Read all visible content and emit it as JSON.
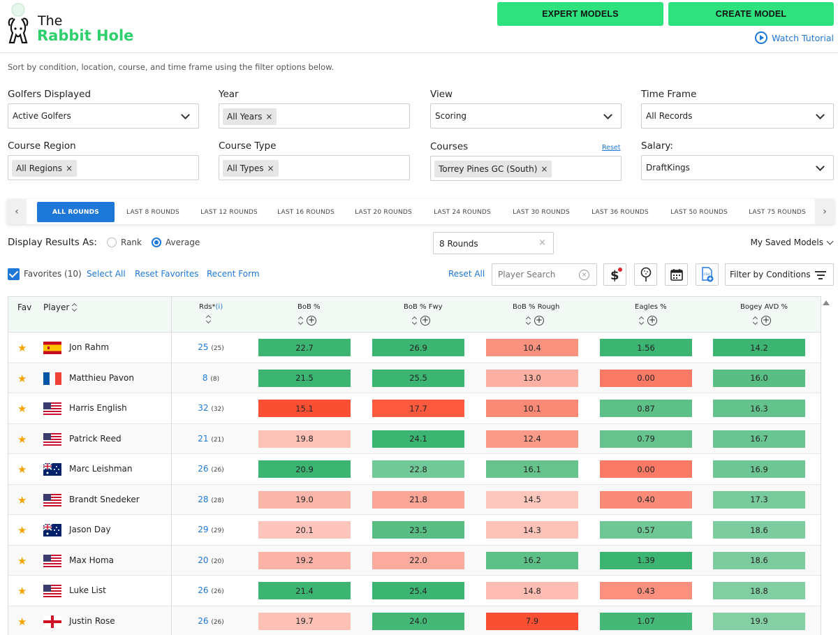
{
  "header": {
    "logo_the": "The",
    "logo_name": "Rabbit Hole",
    "expert_models": "EXPERT MODELS",
    "create_model": "CREATE MODEL",
    "watch_tutorial": "Watch Tutorial"
  },
  "subtitle": "Sort by condition, location, course, and time frame using the filter options below.",
  "filters": {
    "golfers_label": "Golfers Displayed",
    "golfers_value": "Active Golfers",
    "year_label": "Year",
    "year_chip": "All Years",
    "view_label": "View",
    "view_value": "Scoring",
    "timeframe_label": "Time Frame",
    "timeframe_value": "All Records",
    "region_label": "Course Region",
    "region_chip": "All Regions",
    "type_label": "Course Type",
    "type_chip": "All Types",
    "courses_label": "Courses",
    "courses_reset": "Reset",
    "courses_chip": "Torrey Pines GC (South)",
    "salary_label": "Salary:",
    "salary_value": "DraftKings"
  },
  "round_tabs": [
    "ALL ROUNDS",
    "LAST 8 ROUNDS",
    "LAST 12 ROUNDS",
    "LAST 16 ROUNDS",
    "LAST 20 ROUNDS",
    "LAST 24 ROUNDS",
    "LAST 30 ROUNDS",
    "LAST 36 ROUNDS",
    "LAST 50 ROUNDS",
    "LAST 75 ROUNDS"
  ],
  "display": {
    "label": "Display Results As:",
    "rank": "Rank",
    "average": "Average",
    "rounds_value": "8 Rounds",
    "saved_models": "My Saved Models"
  },
  "toolbar": {
    "favorites": "Favorites (10)",
    "select_all": "Select All",
    "reset_favorites": "Reset Favorites",
    "recent_form": "Recent Form",
    "reset_all": "Reset All",
    "search_placeholder": "Player Search",
    "filter_conditions": "Filter by Conditions"
  },
  "table": {
    "headers": {
      "fav": "Fav",
      "player": "Player",
      "rds": "Rds*",
      "rds_info": "(i)",
      "c1": "BoB %",
      "c2": "BoB % Fwy",
      "c3": "BoB % Rough",
      "c4": "Eagles %",
      "c5": "Bogey AVD %"
    },
    "rows": [
      {
        "name": "Jon Rahm",
        "flag": "es",
        "rds": "25",
        "rds_total": "(25)",
        "v": [
          "22.7",
          "26.9",
          "10.4",
          "1.56",
          "14.2"
        ]
      },
      {
        "name": "Matthieu Pavon",
        "flag": "fr",
        "rds": "8",
        "rds_total": "(8)",
        "v": [
          "21.5",
          "25.5",
          "13.0",
          "0.00",
          "16.0"
        ]
      },
      {
        "name": "Harris English",
        "flag": "us",
        "rds": "32",
        "rds_total": "(32)",
        "v": [
          "15.1",
          "17.7",
          "10.1",
          "0.87",
          "16.3"
        ]
      },
      {
        "name": "Patrick Reed",
        "flag": "us",
        "rds": "21",
        "rds_total": "(21)",
        "v": [
          "19.8",
          "24.1",
          "12.4",
          "0.79",
          "16.7"
        ]
      },
      {
        "name": "Marc Leishman",
        "flag": "au",
        "rds": "26",
        "rds_total": "(26)",
        "v": [
          "20.9",
          "22.8",
          "16.1",
          "0.00",
          "16.9"
        ]
      },
      {
        "name": "Brandt Snedeker",
        "flag": "us",
        "rds": "28",
        "rds_total": "(28)",
        "v": [
          "19.0",
          "21.8",
          "14.5",
          "0.40",
          "17.3"
        ]
      },
      {
        "name": "Jason Day",
        "flag": "au",
        "rds": "29",
        "rds_total": "(29)",
        "v": [
          "20.1",
          "23.5",
          "14.3",
          "0.57",
          "18.6"
        ]
      },
      {
        "name": "Max Homa",
        "flag": "us",
        "rds": "20",
        "rds_total": "(20)",
        "v": [
          "19.2",
          "22.0",
          "16.2",
          "1.39",
          "18.6"
        ]
      },
      {
        "name": "Luke List",
        "flag": "us",
        "rds": "26",
        "rds_total": "(26)",
        "v": [
          "21.4",
          "25.4",
          "14.8",
          "0.43",
          "18.8"
        ]
      },
      {
        "name": "Justin Rose",
        "flag": "en",
        "rds": "26",
        "rds_total": "(26)",
        "v": [
          "19.7",
          "24.0",
          "7.9",
          "1.07",
          "19.9"
        ]
      }
    ],
    "colors": [
      [
        "#3cb472",
        "#3cb472",
        "#f8917e",
        "#3cb472",
        "#3cb472"
      ],
      [
        "#3cb472",
        "#3cb472",
        "#fbb0a3",
        "#fa7a66",
        "#58be83"
      ],
      [
        "#fb4f33",
        "#fb5a3e",
        "#fa8a76",
        "#5dc087",
        "#64c38c"
      ],
      [
        "#fdc2b8",
        "#3cb472",
        "#fa9a88",
        "#66c38d",
        "#69c591"
      ],
      [
        "#3cb472",
        "#72c998",
        "#65c38b",
        "#fa7a66",
        "#6dc693"
      ],
      [
        "#fbb6aa",
        "#fba596",
        "#fdc7be",
        "#fa8b78",
        "#78cb9c"
      ],
      [
        "#fdc4bb",
        "#58be83",
        "#fdc2b8",
        "#6ec795",
        "#7dcc9f"
      ],
      [
        "#fbb3a7",
        "#fbab9d",
        "#5dc087",
        "#3cb472",
        "#7dcc9f"
      ],
      [
        "#3cb472",
        "#3cb472",
        "#fdbdb2",
        "#fa907d",
        "#82ce a3"
      ],
      [
        "#fdc0b5",
        "#45b878",
        "#fb4f33",
        "#45b878",
        "#85cfa5"
      ]
    ]
  }
}
